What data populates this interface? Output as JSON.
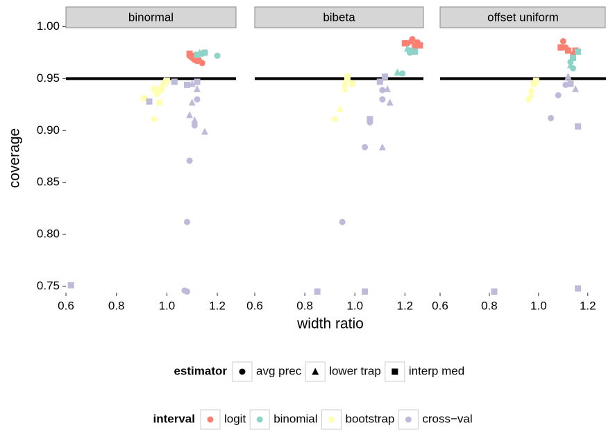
{
  "chart_data": {
    "type": "scatter",
    "x_label": "width ratio",
    "y_label": "coverage",
    "xlim": [
      0.6,
      1.274
    ],
    "ylim": [
      0.744,
      0.999
    ],
    "xticks": [
      0.6,
      0.8,
      {
        "value": 1.0,
        "label": "1.0"
      },
      1.2
    ],
    "yticks": [
      0.75,
      {
        "value": 0.8,
        "label": "0.80"
      },
      0.85,
      {
        "value": 0.9,
        "label": "0.90"
      },
      0.95,
      {
        "value": 1.0,
        "label": "1.00"
      }
    ],
    "reference_line": 0.95,
    "legends": {
      "estimator": {
        "title": "estimator",
        "items": [
          {
            "name": "avg prec",
            "shape": "circle"
          },
          {
            "name": "lower trap",
            "shape": "triangle"
          },
          {
            "name": "interp med",
            "shape": "square"
          }
        ]
      },
      "interval": {
        "title": "interval",
        "items": [
          {
            "name": "logit",
            "color": "#fb8072"
          },
          {
            "name": "binomial",
            "color": "#8dd3c7"
          },
          {
            "name": "bootstrap",
            "color": "#ffffb3"
          },
          {
            "name": "cross−val",
            "color": "#bebada"
          }
        ]
      }
    },
    "facets": [
      {
        "title": "binormal",
        "series": [
          {
            "interval": "logit",
            "estimator": "avg prec",
            "x": [
              1.1,
              1.12,
              1.14,
              1.09,
              1.11
            ],
            "y": [
              0.97,
              0.967,
              0.965,
              0.972,
              0.968
            ]
          },
          {
            "interval": "logit",
            "estimator": "interp med",
            "x": [
              1.09,
              1.1,
              1.12
            ],
            "y": [
              0.974,
              0.972,
              0.972
            ]
          },
          {
            "interval": "logit",
            "estimator": "lower trap",
            "x": [
              1.11,
              1.13
            ],
            "y": [
              0.97,
              0.969
            ]
          },
          {
            "interval": "binomial",
            "estimator": "avg prec",
            "x": [
              1.2,
              1.14
            ],
            "y": [
              0.972,
              0.974
            ]
          },
          {
            "interval": "binomial",
            "estimator": "interp med",
            "x": [
              1.15,
              1.12
            ],
            "y": [
              0.975,
              0.973
            ]
          },
          {
            "interval": "binomial",
            "estimator": "lower trap",
            "x": [
              1.13
            ],
            "y": [
              0.975
            ]
          },
          {
            "interval": "bootstrap",
            "estimator": "avg prec",
            "x": [
              0.95,
              0.97,
              0.99,
              0.96
            ],
            "y": [
              0.911,
              0.938,
              0.945,
              0.935
            ]
          },
          {
            "interval": "bootstrap",
            "estimator": "interp med",
            "x": [
              0.91,
              0.97,
              0.98,
              1.0,
              0.95
            ],
            "y": [
              0.931,
              0.927,
              0.94,
              0.948,
              0.94
            ]
          },
          {
            "interval": "bootstrap",
            "estimator": "lower trap",
            "x": [
              0.96,
              0.98,
              0.99
            ],
            "y": [
              0.94,
              0.944,
              0.948
            ]
          },
          {
            "interval": "cross−val",
            "estimator": "avg prec",
            "x": [
              1.08,
              1.09,
              1.11,
              1.07,
              1.08,
              1.12
            ],
            "y": [
              0.812,
              0.871,
              0.905,
              0.746,
              0.745,
              0.93
            ]
          },
          {
            "interval": "cross−val",
            "estimator": "interp med",
            "x": [
              0.62,
              0.93,
              1.03,
              1.08,
              1.12
            ],
            "y": [
              0.751,
              0.928,
              0.947,
              0.944,
              0.947
            ]
          },
          {
            "interval": "cross−val",
            "estimator": "lower trap",
            "x": [
              1.09,
              1.1,
              1.15,
              1.12,
              1.1,
              1.11
            ],
            "y": [
              0.915,
              0.927,
              0.899,
              0.94,
              0.945,
              0.91
            ]
          }
        ]
      },
      {
        "title": "bibeta",
        "series": [
          {
            "interval": "logit",
            "estimator": "avg prec",
            "x": [
              1.23,
              1.25,
              1.21
            ],
            "y": [
              0.988,
              0.985,
              0.984
            ]
          },
          {
            "interval": "logit",
            "estimator": "interp med",
            "x": [
              1.2,
              1.24,
              1.26
            ],
            "y": [
              0.984,
              0.982,
              0.982
            ]
          },
          {
            "interval": "logit",
            "estimator": "lower trap",
            "x": [
              1.22
            ],
            "y": [
              0.986
            ]
          },
          {
            "interval": "binomial",
            "estimator": "avg prec",
            "x": [
              1.19,
              1.22
            ],
            "y": [
              0.955,
              0.975
            ]
          },
          {
            "interval": "binomial",
            "estimator": "interp med",
            "x": [
              1.22,
              1.24
            ],
            "y": [
              0.977,
              0.976
            ]
          },
          {
            "interval": "binomial",
            "estimator": "lower trap",
            "x": [
              1.17,
              1.21
            ],
            "y": [
              0.956,
              0.979
            ]
          },
          {
            "interval": "bootstrap",
            "estimator": "avg prec",
            "x": [
              0.92,
              0.96,
              0.97
            ],
            "y": [
              0.911,
              0.944,
              0.949
            ]
          },
          {
            "interval": "bootstrap",
            "estimator": "interp med",
            "x": [
              0.97,
              0.99
            ],
            "y": [
              0.952,
              0.945
            ]
          },
          {
            "interval": "bootstrap",
            "estimator": "lower trap",
            "x": [
              0.94,
              0.96
            ],
            "y": [
              0.921,
              0.94
            ]
          },
          {
            "interval": "cross−val",
            "estimator": "avg prec",
            "x": [
              0.95,
              1.04,
              1.06,
              1.11,
              1.11
            ],
            "y": [
              0.812,
              0.884,
              0.908,
              0.93,
              0.939
            ]
          },
          {
            "interval": "cross−val",
            "estimator": "interp med",
            "x": [
              0.85,
              1.04,
              1.06,
              1.12,
              1.1
            ],
            "y": [
              0.745,
              0.745,
              0.911,
              0.952,
              0.947
            ]
          },
          {
            "interval": "cross−val",
            "estimator": "lower trap",
            "x": [
              1.11,
              1.14,
              1.13
            ],
            "y": [
              0.884,
              0.927,
              0.94
            ]
          }
        ]
      },
      {
        "title": "offset uniform",
        "series": [
          {
            "interval": "logit",
            "estimator": "avg prec",
            "x": [
              1.1,
              1.11
            ],
            "y": [
              0.986,
              0.98
            ]
          },
          {
            "interval": "logit",
            "estimator": "interp med",
            "x": [
              1.09,
              1.12,
              1.15
            ],
            "y": [
              0.98,
              0.977,
              0.977
            ]
          },
          {
            "interval": "logit",
            "estimator": "lower trap",
            "x": [
              1.14
            ],
            "y": [
              0.975
            ]
          },
          {
            "interval": "binomial",
            "estimator": "avg prec",
            "x": [
              1.14,
              1.13
            ],
            "y": [
              0.96,
              0.966
            ]
          },
          {
            "interval": "binomial",
            "estimator": "interp med",
            "x": [
              1.16,
              1.14
            ],
            "y": [
              0.976,
              0.97
            ]
          },
          {
            "interval": "binomial",
            "estimator": "lower trap",
            "x": [
              1.13
            ],
            "y": [
              0.963
            ]
          },
          {
            "interval": "bootstrap",
            "estimator": "avg prec",
            "x": [
              0.96,
              0.97
            ],
            "y": [
              0.93,
              0.938
            ]
          },
          {
            "interval": "bootstrap",
            "estimator": "interp med",
            "x": [
              0.98,
              0.99
            ],
            "y": [
              0.945,
              0.948
            ]
          },
          {
            "interval": "bootstrap",
            "estimator": "lower trap",
            "x": [
              0.97
            ],
            "y": [
              0.935
            ]
          },
          {
            "interval": "cross−val",
            "estimator": "avg prec",
            "x": [
              1.05,
              1.08,
              1.11
            ],
            "y": [
              0.912,
              0.934,
              0.944
            ]
          },
          {
            "interval": "cross−val",
            "estimator": "interp med",
            "x": [
              0.82,
              1.16,
              1.16,
              1.13
            ],
            "y": [
              0.745,
              0.904,
              0.748,
              0.945
            ]
          },
          {
            "interval": "cross−val",
            "estimator": "lower trap",
            "x": [
              1.15,
              1.12
            ],
            "y": [
              0.94,
              0.952
            ]
          }
        ]
      }
    ]
  }
}
